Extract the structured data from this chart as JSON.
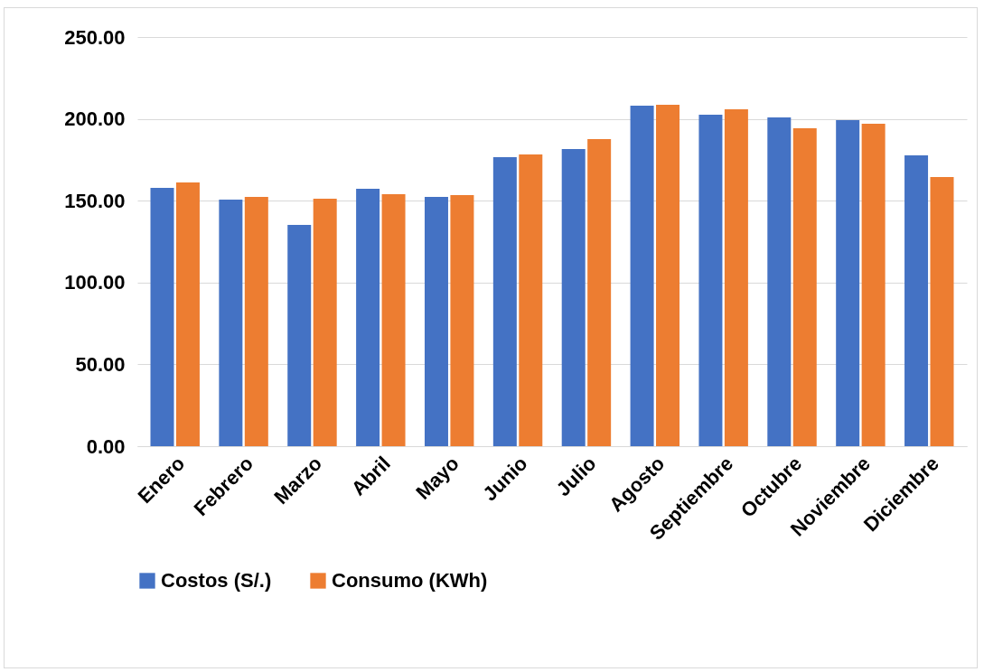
{
  "chart_data": {
    "type": "bar",
    "categories": [
      "Enero",
      "Febrero",
      "Marzo",
      "Abril",
      "Mayo",
      "Junio",
      "Julio",
      "Agosto",
      "Septiembre",
      "Octubre",
      "Noviembre",
      "Diciembre"
    ],
    "series": [
      {
        "name": "Costos (S/.)",
        "color": "#4472c4",
        "values": [
          157.8,
          150.7,
          135.2,
          157.3,
          152.3,
          176.6,
          181.6,
          208.0,
          202.5,
          200.9,
          199.2,
          177.7
        ]
      },
      {
        "name": "Consumo (KWh)",
        "color": "#ed7d31",
        "values": [
          161.1,
          152.3,
          151.2,
          154.0,
          153.4,
          178.3,
          187.6,
          208.6,
          205.8,
          194.3,
          197.0,
          164.5
        ]
      }
    ],
    "ylim": [
      0,
      250
    ],
    "yticks": [
      {
        "value": 0,
        "label": "0.00"
      },
      {
        "value": 50,
        "label": "50.00"
      },
      {
        "value": 100,
        "label": "100.00"
      },
      {
        "value": 150,
        "label": "150.00"
      },
      {
        "value": 200,
        "label": "200.00"
      },
      {
        "value": 250,
        "label": "250.00"
      }
    ],
    "grid": "y",
    "legend": "bottom"
  }
}
